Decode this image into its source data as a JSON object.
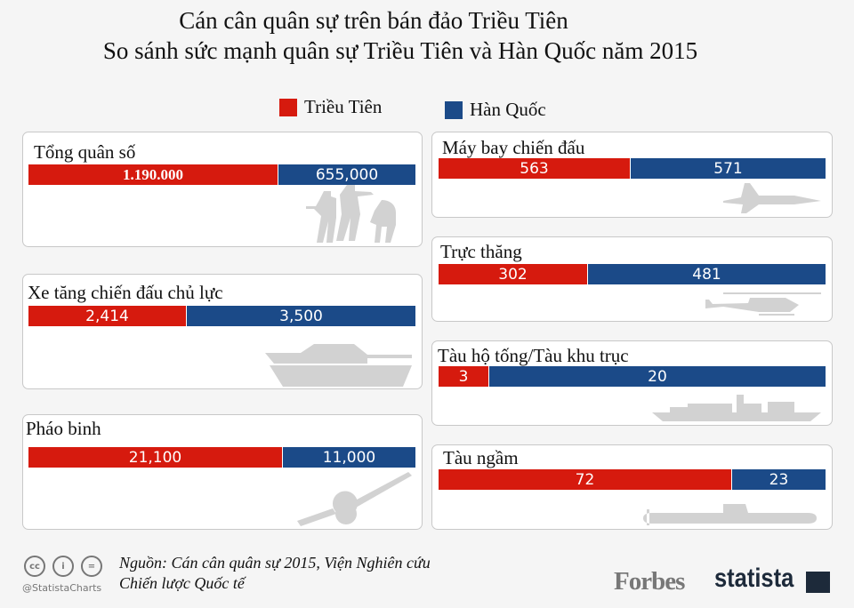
{
  "title_line1": "Cán cân quân sự trên bán đảo Triều Tiên",
  "title_line2": "So sánh sức mạnh quân sự Triều Tiên và Hàn Quốc năm 2015",
  "chart_data": {
    "type": "bar",
    "orientation": "horizontal-stacked-100",
    "legend": [
      {
        "name": "Triều Tiên",
        "color": "#d61a0e"
      },
      {
        "name": "Hàn Quốc",
        "color": "#1b4a88"
      }
    ],
    "panels": [
      {
        "title": "Tổng quân số",
        "nk": 1190000,
        "sk": 655000,
        "nk_label": "1.190.000",
        "sk_label": "655,000",
        "icon": "soldiers-icon"
      },
      {
        "title": "Xe tăng chiến đấu chủ lực",
        "nk": 2414,
        "sk": 3500,
        "nk_label": "2,414",
        "sk_label": "3,500",
        "icon": "tank-icon"
      },
      {
        "title": "Pháo binh",
        "nk": 21100,
        "sk": 11000,
        "nk_label": "21,100",
        "sk_label": "11,000",
        "icon": "artillery-icon"
      },
      {
        "title": "Máy bay chiến đấu",
        "nk": 563,
        "sk": 571,
        "nk_label": "563",
        "sk_label": "571",
        "icon": "fighter-jet-icon"
      },
      {
        "title": "Trực thăng",
        "nk": 302,
        "sk": 481,
        "nk_label": "302",
        "sk_label": "481",
        "icon": "helicopter-icon"
      },
      {
        "title": "Tàu hộ tống/Tàu khu trục",
        "nk": 3,
        "sk": 20,
        "nk_label": "3",
        "sk_label": "20",
        "icon": "warship-icon"
      },
      {
        "title": "Tàu ngầm",
        "nk": 72,
        "sk": 23,
        "nk_label": "72",
        "sk_label": "23",
        "icon": "submarine-icon"
      }
    ]
  },
  "footer": {
    "source_line1": "Nguồn: Cán cân quân sự 2015, Viện Nghiên cứu",
    "source_line2": "Chiến lược Quốc tế",
    "handle": "@StatistaCharts",
    "forbes": "Forbes",
    "statista": "statista",
    "cc_icons": [
      "cc",
      "i",
      "="
    ]
  }
}
